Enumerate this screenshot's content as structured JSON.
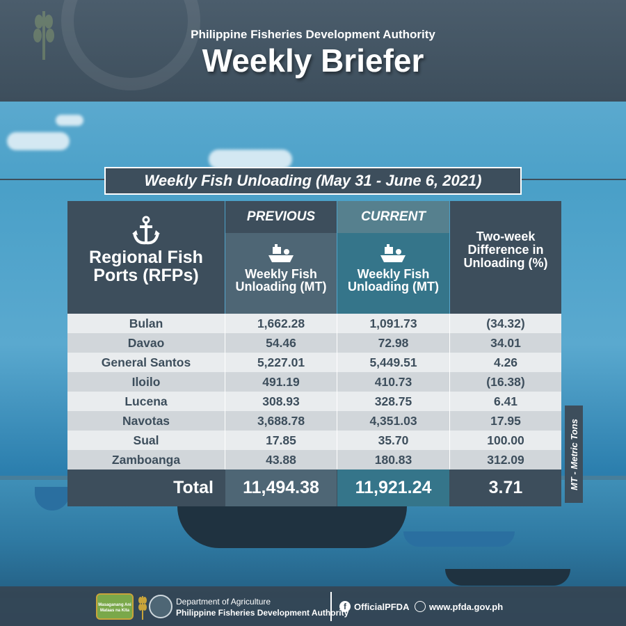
{
  "header": {
    "subtitle": "Philippine Fisheries Development Authority",
    "title": "Weekly Briefer"
  },
  "banner": {
    "title": "Weekly Fish Unloading (May 31 - June 6, 2021)"
  },
  "table": {
    "col_rfp": "Regional Fish Ports (RFPs)",
    "col_prev_tag": "PREVIOUS",
    "col_prev_label": "Weekly Fish Unloading (MT)",
    "col_curr_tag": "CURRENT",
    "col_curr_label": "Weekly Fish Unloading (MT)",
    "col_diff": "Two-week Difference in Unloading (%)",
    "rows": [
      {
        "port": "Bulan",
        "previous": "1,662.28",
        "current": "1,091.73",
        "diff": "(34.32)"
      },
      {
        "port": "Davao",
        "previous": "54.46",
        "current": "72.98",
        "diff": "34.01"
      },
      {
        "port": "General Santos",
        "previous": "5,227.01",
        "current": "5,449.51",
        "diff": "4.26"
      },
      {
        "port": "Iloilo",
        "previous": "491.19",
        "current": "410.73",
        "diff": "(16.38)"
      },
      {
        "port": "Lucena",
        "previous": "308.93",
        "current": "328.75",
        "diff": "6.41"
      },
      {
        "port": "Navotas",
        "previous": "3,688.78",
        "current": "4,351.03",
        "diff": "17.95"
      },
      {
        "port": "Sual",
        "previous": "17.85",
        "current": "35.70",
        "diff": "100.00"
      },
      {
        "port": "Zamboanga",
        "previous": "43.88",
        "current": "180.83",
        "diff": "312.09"
      }
    ],
    "total": {
      "label": "Total",
      "previous": "11,494.38",
      "current": "11,921.24",
      "diff": "3.71"
    }
  },
  "side_note": "MT - Metric Tons",
  "footer": {
    "department": "Department of Agriculture",
    "agency": "Philippine Fisheries Development Authority",
    "facebook": "OfficialPFDA",
    "website": "www.pfda.gov.ph",
    "logo_text_1": "Masaganang Ani",
    "logo_text_2": "Mataas na Kita"
  },
  "icons": [
    "anchor-icon",
    "fishing-boat-icon",
    "facebook-icon",
    "globe-icon"
  ],
  "colors": {
    "dark_slate": "#3d4e5c",
    "previous_col": "#4e6675",
    "current_col": "#35758a",
    "row_light": "#e9ecee",
    "row_dark": "#d1d6da"
  }
}
